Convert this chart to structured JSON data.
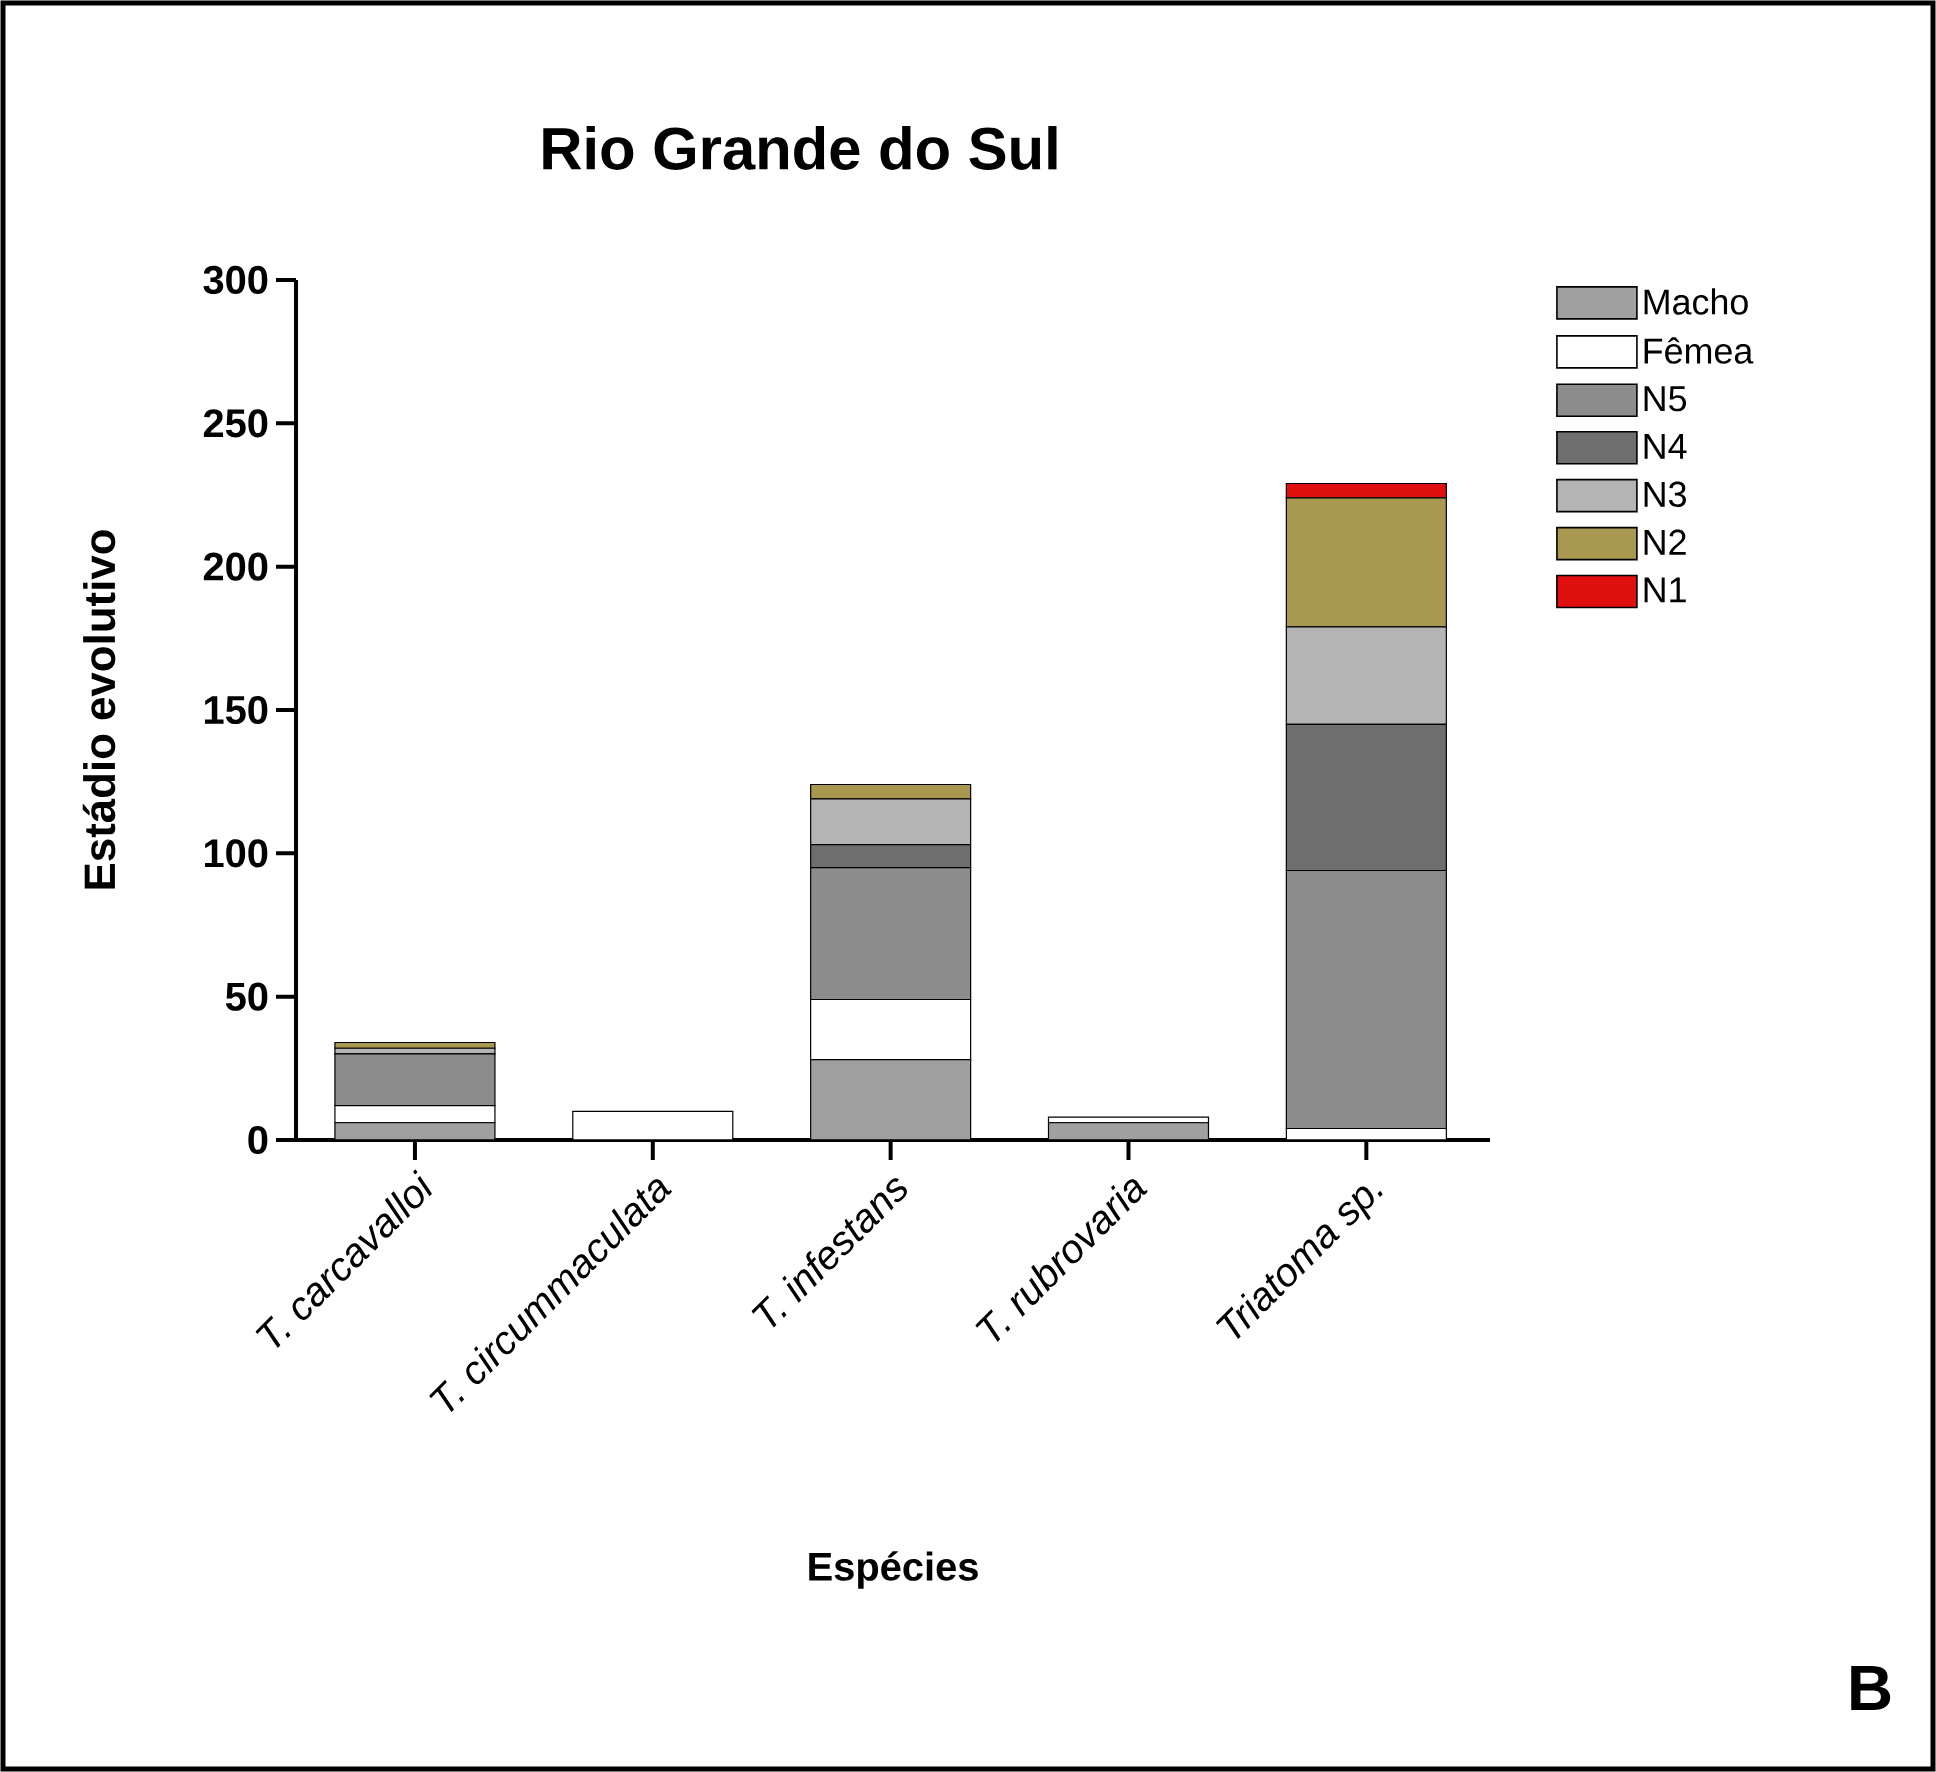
{
  "chart_data": {
    "type": "bar",
    "stacked": true,
    "title": "Rio Grande do Sul",
    "xlabel": "Espécies",
    "ylabel": "Estádio evolutivo",
    "categories": [
      "T. carcavalloi",
      "T. circummaculata",
      "T. infestans",
      "T. rubrovaria",
      "*Triatoma* sp."
    ],
    "series": [
      {
        "name": "Macho",
        "color": "#a0a0a0",
        "values": [
          6,
          0,
          28,
          6,
          0
        ]
      },
      {
        "name": "Fêmea",
        "color": "#ffffff",
        "values": [
          6,
          10,
          21,
          2,
          4
        ]
      },
      {
        "name": "N5",
        "color": "#8c8c8c",
        "values": [
          18,
          0,
          46,
          0,
          90
        ]
      },
      {
        "name": "N4",
        "color": "#6e6e6e",
        "values": [
          0,
          0,
          8,
          0,
          51
        ]
      },
      {
        "name": "N3",
        "color": "#b4b4b4",
        "values": [
          2,
          0,
          16,
          0,
          34
        ]
      },
      {
        "name": "N2",
        "color": "#a89850",
        "values": [
          2,
          0,
          5,
          0,
          45
        ]
      },
      {
        "name": "N1",
        "color": "#e01010",
        "values": [
          0,
          0,
          0,
          0,
          5
        ]
      }
    ],
    "ylim": [
      0,
      300
    ],
    "yticks": [
      0,
      50,
      100,
      150,
      200,
      250,
      300
    ],
    "legend": "right",
    "annotations": [
      "B"
    ]
  }
}
